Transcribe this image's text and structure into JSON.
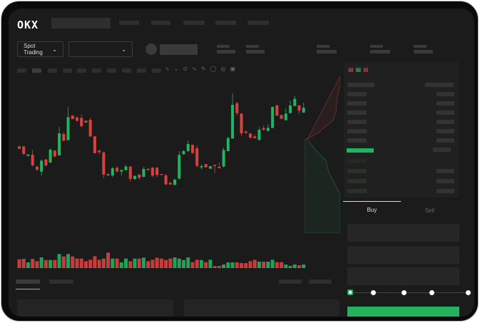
{
  "header": {
    "logo": "OKX"
  },
  "market_bar": {
    "spot_trading_label": "Spot Trading"
  },
  "trade_form": {
    "buy_tab": "Buy",
    "sell_tab": "Sell",
    "active_tab": "Buy",
    "leverage_slider_value": 0
  },
  "colors": {
    "up": "#22b35e",
    "down": "#d9413f",
    "background": "#1b1b1b"
  },
  "chart_data": {
    "type": "candlestick",
    "series": [
      [
        750,
        752,
        738,
        740
      ],
      [
        750,
        752,
        715,
        718
      ],
      [
        710,
        716,
        710,
        716
      ],
      [
        715,
        735,
        665,
        670
      ],
      [
        665,
        668,
        647,
        652
      ],
      [
        644,
        695,
        628,
        690
      ],
      [
        695,
        698,
        665,
        670
      ],
      [
        682,
        742,
        680,
        736
      ],
      [
        732,
        735,
        704,
        708
      ],
      [
        712,
        832,
        712,
        805
      ],
      [
        802,
        810,
        772,
        774
      ],
      [
        776,
        915,
        776,
        873
      ],
      [
        880,
        880,
        865,
        865
      ],
      [
        872,
        875,
        853,
        858
      ],
      [
        870,
        885,
        830,
        835
      ],
      [
        859,
        859,
        850,
        850
      ],
      [
        862,
        870,
        790,
        792
      ],
      [
        792,
        795,
        720,
        722
      ],
      [
        732,
        735,
        717,
        725
      ],
      [
        725,
        728,
        617,
        632
      ],
      [
        633,
        637,
        625,
        628
      ],
      [
        628,
        664,
        620,
        658
      ],
      [
        660,
        667,
        640,
        645
      ],
      [
        644,
        651,
        628,
        651
      ],
      [
        650,
        673,
        648,
        665
      ],
      [
        665,
        668,
        602,
        613
      ],
      [
        613,
        628,
        608,
        626
      ],
      [
        632,
        632,
        610,
        618
      ],
      [
        622,
        663,
        620,
        655
      ],
      [
        656,
        656,
        650,
        650
      ],
      [
        660,
        664,
        620,
        627
      ],
      [
        660,
        664,
        620,
        630
      ],
      [
        634,
        634,
        630,
        630
      ],
      [
        628,
        635,
        588,
        590
      ],
      [
        597,
        600,
        590,
        590
      ],
      [
        588,
        615,
        587,
        610
      ],
      [
        615,
        730,
        610,
        714
      ],
      [
        717,
        735,
        715,
        730
      ],
      [
        730,
        775,
        728,
        760
      ],
      [
        756,
        760,
        720,
        722
      ],
      [
        742,
        755,
        662,
        668
      ],
      [
        662,
        674,
        654,
        667
      ],
      [
        676,
        676,
        662,
        662
      ],
      [
        656,
        667,
        656,
        667
      ],
      [
        672,
        675,
        638,
        668
      ],
      [
        664,
        682,
        658,
        658
      ],
      [
        665,
        745,
        662,
        735
      ],
      [
        730,
        792,
        730,
        785
      ],
      [
        783,
        974,
        783,
        925
      ],
      [
        932,
        937,
        880,
        890
      ],
      [
        888,
        890,
        792,
        805
      ],
      [
        813,
        817,
        803,
        807
      ],
      [
        804,
        807,
        782,
        787
      ],
      [
        792,
        798,
        784,
        785
      ],
      [
        777,
        832,
        775,
        820
      ],
      [
        827,
        838,
        817,
        820
      ],
      [
        815,
        843,
        814,
        828
      ],
      [
        828,
        918,
        826,
        916
      ],
      [
        923,
        925,
        877,
        880
      ],
      [
        882,
        882,
        866,
        866
      ],
      [
        860,
        910,
        860,
        888
      ],
      [
        890,
        943,
        890,
        922
      ],
      [
        920,
        963,
        920,
        950
      ],
      [
        922,
        925,
        888,
        900
      ],
      [
        892,
        935,
        892,
        913
      ]
    ],
    "series_format": [
      "open",
      "high",
      "low",
      "close"
    ],
    "volume": [
      37,
      39,
      24,
      39,
      29,
      45,
      34,
      34,
      34,
      59,
      49,
      59,
      49,
      40,
      40,
      29,
      35,
      50,
      35,
      40,
      65,
      40,
      40,
      24,
      40,
      29,
      40,
      40,
      44,
      29,
      35,
      44,
      40,
      34,
      40,
      45,
      40,
      34,
      45,
      25,
      35,
      34,
      25,
      35,
      9,
      9,
      15,
      24,
      24,
      24,
      21,
      21,
      29,
      35,
      27,
      27,
      27,
      35,
      25,
      25,
      15,
      9,
      15,
      12,
      15
    ],
    "grid": true
  }
}
